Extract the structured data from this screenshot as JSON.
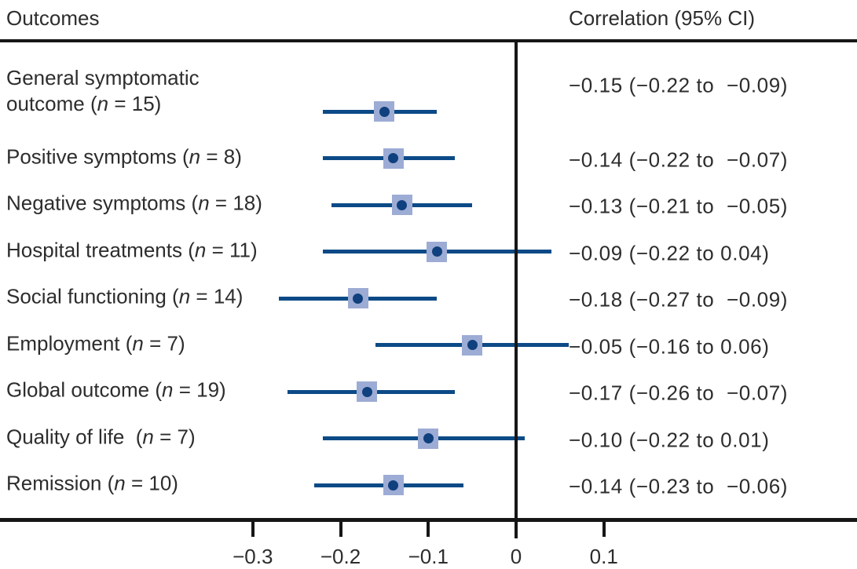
{
  "colors": {
    "accent_line": "#0c4a87",
    "marker_fill": "#9dacd4",
    "marker_dot": "#10407e",
    "rule": "#161616",
    "text": "#2d2d2d"
  },
  "n_symbol": "n",
  "n_prefix": " (",
  "n_equals": " = ",
  "n_suffix": ")",
  "chart_data": {
    "type": "forest",
    "title": "",
    "columns": {
      "left": "Outcomes",
      "right": "Correlation (95% CI)"
    },
    "xlabel": "",
    "xlim": [
      -0.39,
      0.19
    ],
    "xticks": [
      -0.3,
      -0.2,
      -0.1,
      0,
      0.1
    ],
    "tick_labels": [
      "−0.3",
      "−0.2",
      "−0.1",
      "0",
      "0.1"
    ],
    "grid": false,
    "legend": "none",
    "rows": [
      {
        "label": "General symptomatic\noutcome",
        "n": "15",
        "r": -0.15,
        "lo": -0.22,
        "hi": -0.09,
        "value_text": "−0.15 (−0.22 to  −0.09)"
      },
      {
        "label": "Positive symptoms",
        "n": "8",
        "r": -0.14,
        "lo": -0.22,
        "hi": -0.07,
        "value_text": "−0.14 (−0.22 to  −0.07)"
      },
      {
        "label": "Negative symptoms",
        "n": "18",
        "r": -0.13,
        "lo": -0.21,
        "hi": -0.05,
        "value_text": "−0.13 (−0.21 to  −0.05)"
      },
      {
        "label": "Hospital treatments",
        "n": "11",
        "r": -0.09,
        "lo": -0.22,
        "hi": 0.04,
        "value_text": "−0.09 (−0.22 to 0.04)"
      },
      {
        "label": "Social functioning",
        "n": "14",
        "r": -0.18,
        "lo": -0.27,
        "hi": -0.09,
        "value_text": "−0.18 (−0.27 to  −0.09)"
      },
      {
        "label": "Employment",
        "n": "7",
        "r": -0.05,
        "lo": -0.16,
        "hi": 0.06,
        "value_text": "−0.05 (−0.16 to 0.06)"
      },
      {
        "label": "Global outcome",
        "n": "19",
        "r": -0.17,
        "lo": -0.26,
        "hi": -0.07,
        "value_text": "−0.17 (−0.26 to  −0.07)"
      },
      {
        "label": "Quality of life ",
        "n": "7",
        "r": -0.1,
        "lo": -0.22,
        "hi": 0.01,
        "value_text": "−0.10 (−0.22 to 0.01)"
      },
      {
        "label": "Remission",
        "n": "10",
        "r": -0.14,
        "lo": -0.23,
        "hi": -0.06,
        "value_text": "−0.14 (−0.23 to  −0.06)"
      }
    ]
  }
}
